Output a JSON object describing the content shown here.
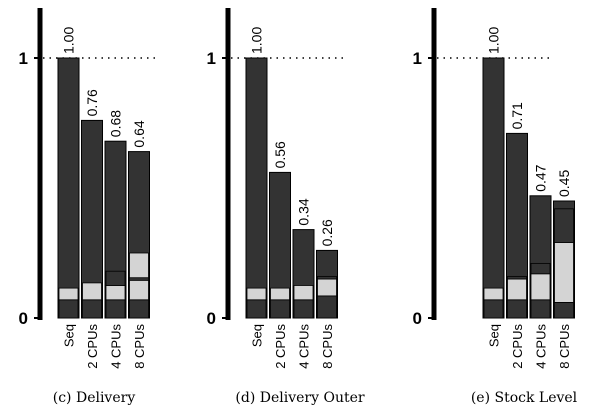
{
  "chart_data": [
    {
      "type": "bar",
      "caption": "(c) Delivery",
      "categories": [
        "Seq",
        "2 CPUs",
        "4 CPUs",
        "8 CPUs"
      ],
      "values": [
        1.0,
        0.76,
        0.68,
        0.64
      ],
      "value_labels": [
        "1.00",
        "0.76",
        "0.68",
        "0.64"
      ],
      "segments": [
        [
          0.07,
          0.045
        ],
        [
          0.07,
          0.065
        ],
        [
          0.07,
          0.055,
          0.055
        ],
        [
          0.07,
          0.075,
          0.01,
          0.095
        ]
      ],
      "yticks": [
        {
          "value": 0,
          "label": "0"
        },
        {
          "value": 1,
          "label": "1"
        }
      ],
      "ylim": [
        0,
        1.18
      ],
      "reference_line": 1
    },
    {
      "type": "bar",
      "caption": "(d) Delivery Outer",
      "categories": [
        "Seq",
        "2 CPUs",
        "4 CPUs",
        "8 CPUs"
      ],
      "values": [
        1.0,
        0.56,
        0.34,
        0.26
      ],
      "value_labels": [
        "1.00",
        "0.56",
        "0.34",
        "0.26"
      ],
      "segments": [
        [
          0.07,
          0.045
        ],
        [
          0.07,
          0.045
        ],
        [
          0.07,
          0.055
        ],
        [
          0.085,
          0.065,
          0.01
        ]
      ],
      "yticks": [
        {
          "value": 0,
          "label": "0"
        },
        {
          "value": 1,
          "label": "1"
        }
      ],
      "ylim": [
        0,
        1.18
      ],
      "reference_line": 1
    },
    {
      "type": "bar",
      "caption": "(e) Stock Level",
      "categories": [
        "Seq",
        "2 CPUs",
        "4 CPUs",
        "8 CPUs"
      ],
      "values": [
        1.0,
        0.71,
        0.47,
        0.45
      ],
      "value_labels": [
        "1.00",
        "0.71",
        "0.47",
        "0.45"
      ],
      "segments": [
        [
          0.07,
          0.045
        ],
        [
          0.07,
          0.08,
          0.01
        ],
        [
          0.07,
          0.1,
          0.04
        ],
        [
          0.06,
          0.23,
          0.13
        ]
      ],
      "yticks": [
        {
          "value": 0,
          "label": "0"
        },
        {
          "value": 1,
          "label": "1"
        }
      ],
      "ylim": [
        0,
        1.18
      ],
      "reference_line": 1
    }
  ],
  "colors": {
    "bar_fill": "#333333",
    "bar_outline": "#000000",
    "segment_fill": "#d4d4d4",
    "segment_stroke": "#000000",
    "axis": "#000000",
    "reference_line": "#000000",
    "background": "#ffffff"
  }
}
